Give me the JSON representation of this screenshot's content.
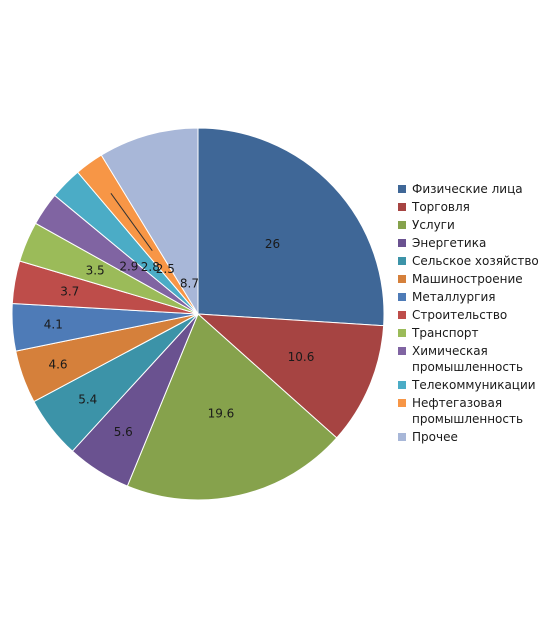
{
  "chart_data": {
    "type": "pie",
    "title": "",
    "categories": [
      "Физические лица",
      "Торговля",
      "Услуги",
      "Энергетика",
      "Сельское хозяйство",
      "Машиностроение",
      "Металлургия",
      "Строительство",
      "Транспорт",
      "Химическая промышленность",
      "Телекоммуникации",
      "Нефтегазовая промышленность",
      "Прочее"
    ],
    "values": [
      26,
      10.6,
      19.6,
      5.6,
      5.4,
      4.6,
      4.1,
      3.7,
      3.5,
      2.9,
      2.8,
      2.5,
      8.7
    ],
    "value_labels": [
      "26",
      "10.6",
      "19.6",
      "5.6",
      "5.4",
      "4.6",
      "4.1",
      "3.7",
      "3.5",
      "2.9",
      "2.8",
      "2.5",
      "8.7"
    ],
    "colors": [
      "#3F6797",
      "#A64442",
      "#86A24C",
      "#6A5290",
      "#3C93A8",
      "#D5803B",
      "#4E7BB7",
      "#BE4D4A",
      "#9BBB59",
      "#8064A2",
      "#4BACC6",
      "#F79646",
      "#A8B7D8"
    ],
    "legend_position": "right",
    "start_angle_deg": 0,
    "direction": "clockwise"
  }
}
